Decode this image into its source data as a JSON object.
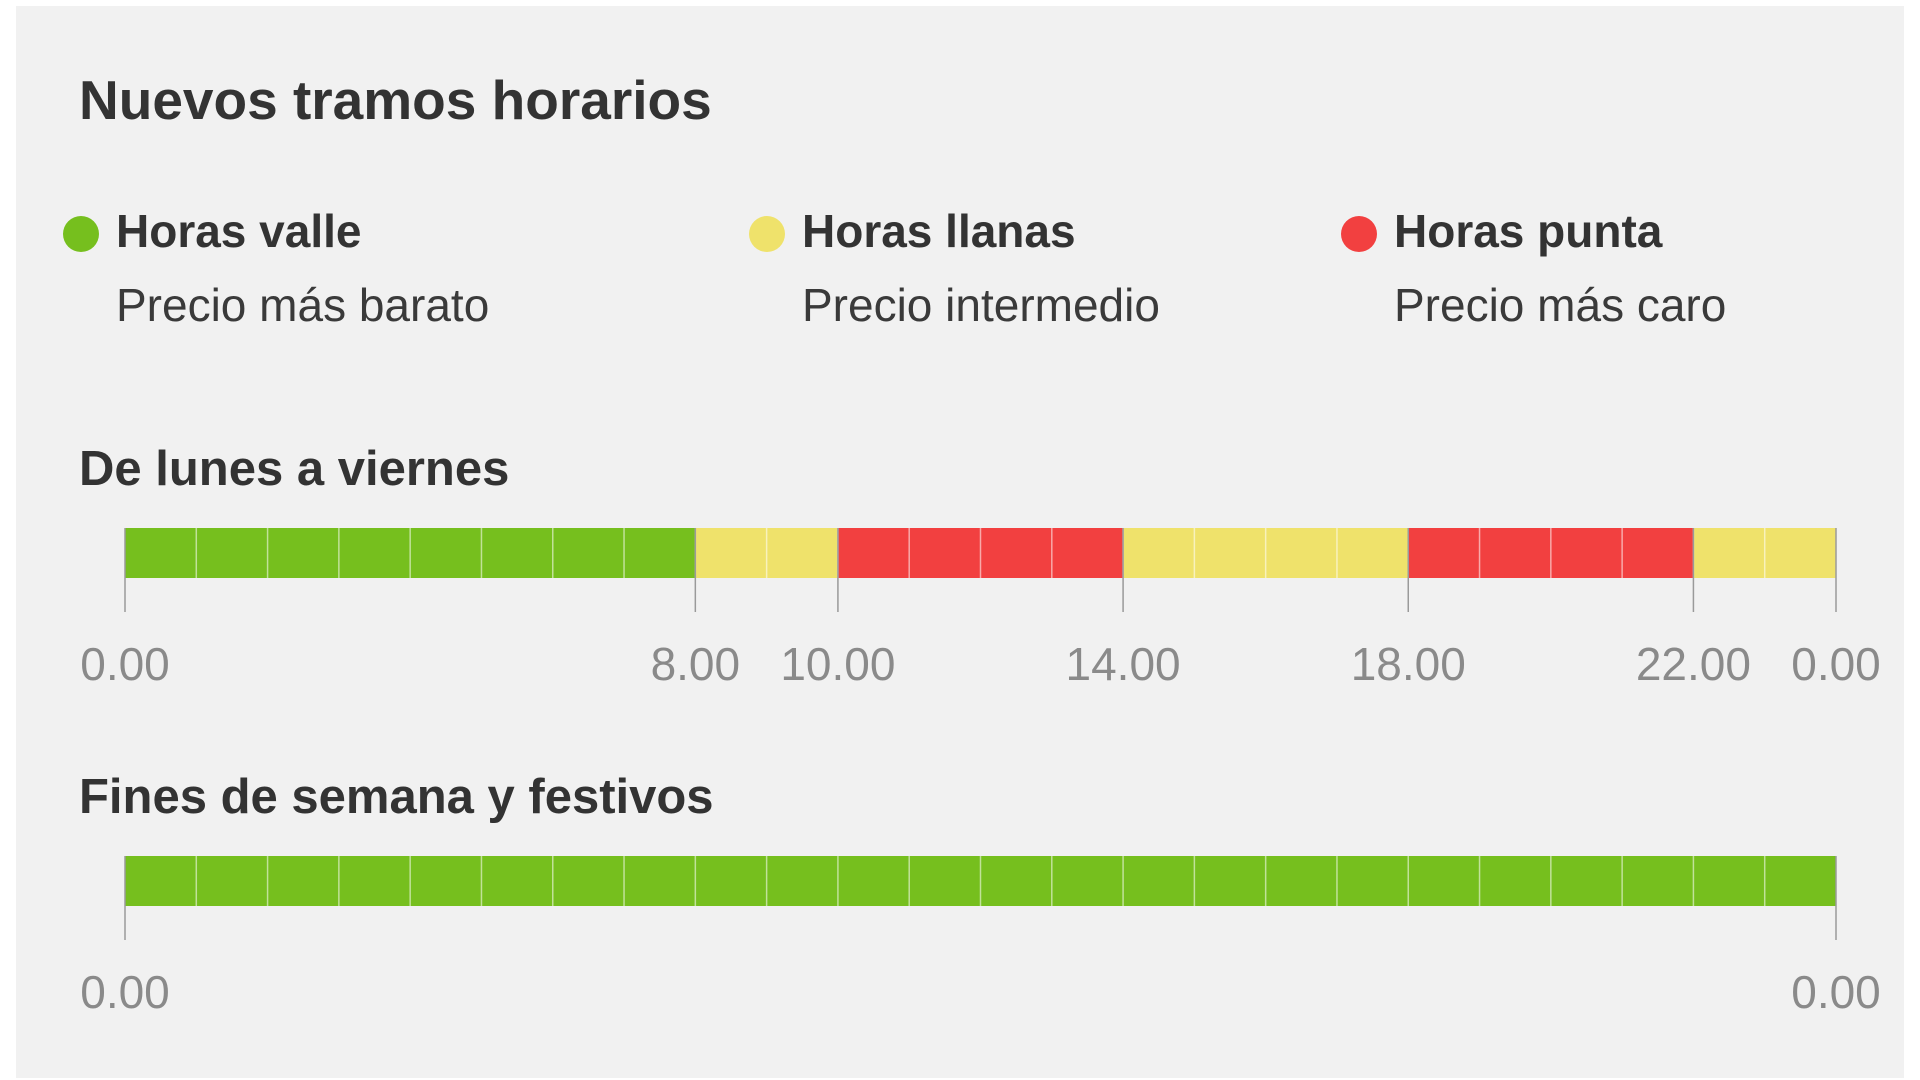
{
  "title": "Nuevos tramos horarios",
  "legend": [
    {
      "key": "valle",
      "label": "Horas valle",
      "desc": "Precio más barato",
      "color": "#76bf1e"
    },
    {
      "key": "llana",
      "label": "Horas llanas",
      "desc": "Precio intermedio",
      "color": "#efe26b"
    },
    {
      "key": "punta",
      "label": "Horas punta",
      "desc": "Precio más caro",
      "color": "#f24040"
    }
  ],
  "chart_data": [
    {
      "type": "bar",
      "title": "De lunes a viernes",
      "xlim": [
        0,
        24
      ],
      "segments": [
        {
          "start": 0,
          "end": 8,
          "category": "valle"
        },
        {
          "start": 8,
          "end": 10,
          "category": "llana"
        },
        {
          "start": 10,
          "end": 14,
          "category": "punta"
        },
        {
          "start": 14,
          "end": 18,
          "category": "llana"
        },
        {
          "start": 18,
          "end": 22,
          "category": "punta"
        },
        {
          "start": 22,
          "end": 24,
          "category": "llana"
        }
      ],
      "ticks": [
        {
          "hour": 0,
          "label": "0.00"
        },
        {
          "hour": 8,
          "label": "8.00"
        },
        {
          "hour": 10,
          "label": "10.00"
        },
        {
          "hour": 14,
          "label": "14.00"
        },
        {
          "hour": 18,
          "label": "18.00"
        },
        {
          "hour": 22,
          "label": "22.00"
        },
        {
          "hour": 24,
          "label": "0.00"
        }
      ]
    },
    {
      "type": "bar",
      "title": "Fines de semana y festivos",
      "xlim": [
        0,
        24
      ],
      "segments": [
        {
          "start": 0,
          "end": 24,
          "category": "valle"
        }
      ],
      "ticks": [
        {
          "hour": 0,
          "label": "0.00"
        },
        {
          "hour": 24,
          "label": "0.00"
        }
      ]
    }
  ]
}
